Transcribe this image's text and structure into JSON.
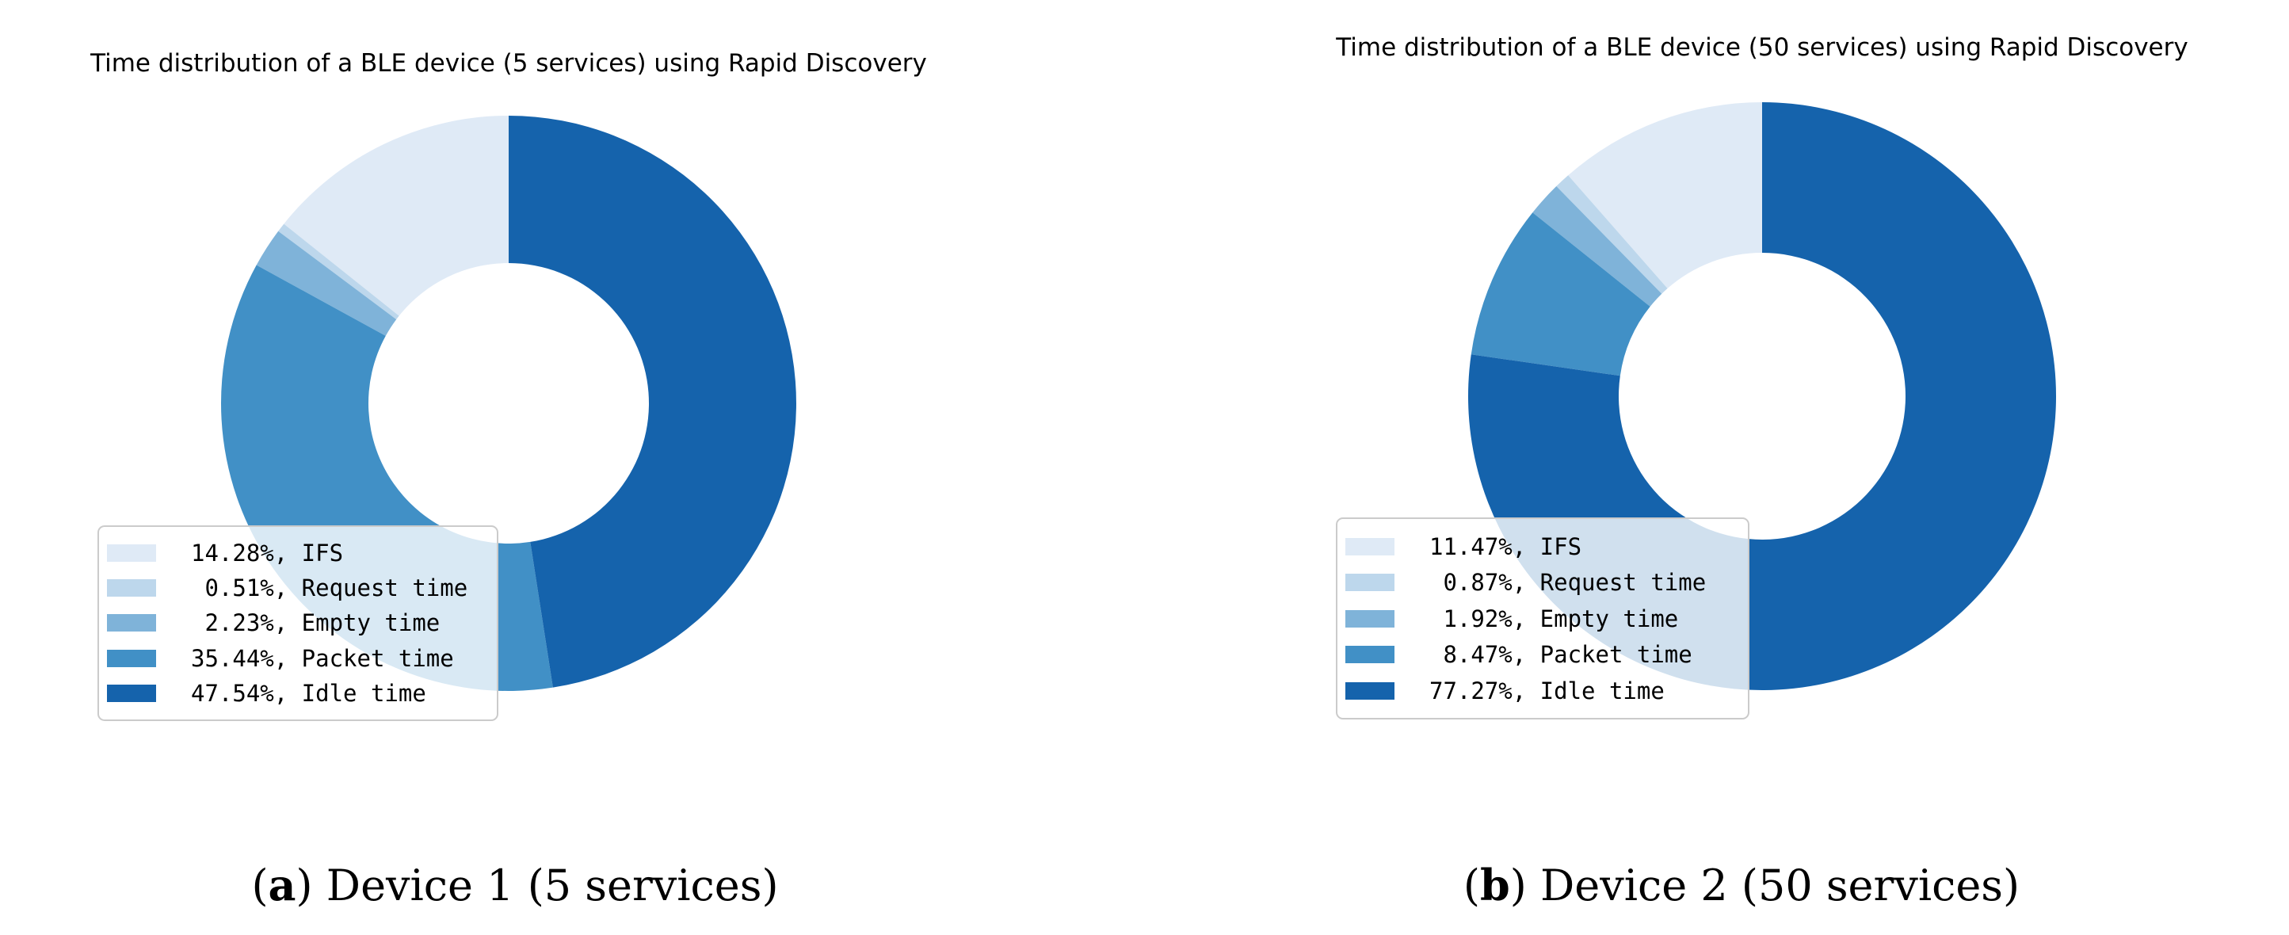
{
  "chart_data": [
    {
      "type": "pie",
      "subtype": "donut",
      "title": "Time distribution of a BLE device (5 services) using Rapid Discovery",
      "labels": [
        "IFS",
        "Request time",
        "Empty time",
        "Packet time",
        "Idle time"
      ],
      "values": [
        14.28,
        0.51,
        2.23,
        35.44,
        47.54
      ],
      "colors": [
        "#dfeaf6",
        "#bdd7ec",
        "#7fb3d9",
        "#4190c6",
        "#1563ac"
      ],
      "unit": "%",
      "start_angle_deg": 90,
      "direction": "counterclockwise",
      "legend_position": "lower left",
      "legend_format": "{value}%, {label}",
      "caption": {
        "open": "(",
        "letter": "a",
        "close": ")",
        "text": "Device 1 (5 services)"
      }
    },
    {
      "type": "pie",
      "subtype": "donut",
      "title": "Time distribution of a BLE device (50 services) using Rapid Discovery",
      "labels": [
        "IFS",
        "Request time",
        "Empty time",
        "Packet time",
        "Idle time"
      ],
      "values": [
        11.47,
        0.87,
        1.92,
        8.47,
        77.27
      ],
      "colors": [
        "#dfeaf6",
        "#bdd7ec",
        "#7fb3d9",
        "#4190c6",
        "#1563ac"
      ],
      "unit": "%",
      "start_angle_deg": 90,
      "direction": "counterclockwise",
      "legend_position": "lower left",
      "legend_format": "{value}%, {label}",
      "caption": {
        "open": "(",
        "letter": "b",
        "close": ")",
        "text": "Device 2 (50 services)"
      }
    }
  ]
}
